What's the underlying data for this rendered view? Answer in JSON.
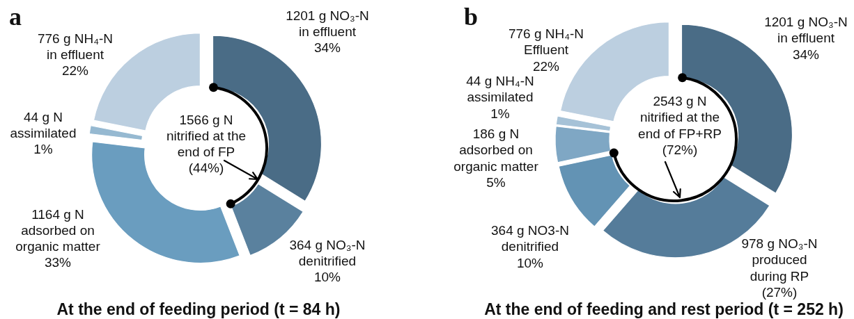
{
  "chart_data": [
    {
      "type": "donut",
      "title": "At the end of feeding period (t = 84 h)",
      "annotations": [
        "a",
        "1566 g N\nnitrified at the\nend of FP\n(44%)"
      ],
      "categories": [
        "1201 g NO₃-N\nin effluent\n34%",
        "364 g NO₃-N\ndenitrified\n10%",
        "1164 g N\nadsorbed on\norganic matter\n33%",
        "44 g N\nassimilated\n1%",
        "776 g NH₄-N\nin effluent\n22%"
      ],
      "values": [
        1201,
        364,
        1164,
        44,
        776
      ],
      "colors": [
        "#4a6c86",
        "#5a819e",
        "#6a9dbf",
        "#96b9d1",
        "#bccfe0"
      ]
    },
    {
      "type": "donut",
      "title": "At the end of feeding and rest period (t = 252 h)",
      "annotations": [
        "b",
        "2543 g N\nnitrified at the\nend of FP+RP\n(72%)"
      ],
      "categories": [
        "1201 g NO₃-N\nin effluent\n34%",
        "978 g NO₃-N\nproduced\nduring RP\n(27%)",
        "364 g NO3-N\ndenitrified\n10%",
        "186 g N\nadsorbed on\norganic matter\n5%",
        "44 g NH₄-N\nassimilated\n1%",
        "776 g NH₄-N\nEffluent\n22%"
      ],
      "values": [
        1201,
        978,
        364,
        186,
        44,
        776
      ],
      "colors": [
        "#4a6c86",
        "#557c9a",
        "#6393b4",
        "#7fa7c4",
        "#a6c2d7",
        "#bccfe0"
      ]
    }
  ]
}
